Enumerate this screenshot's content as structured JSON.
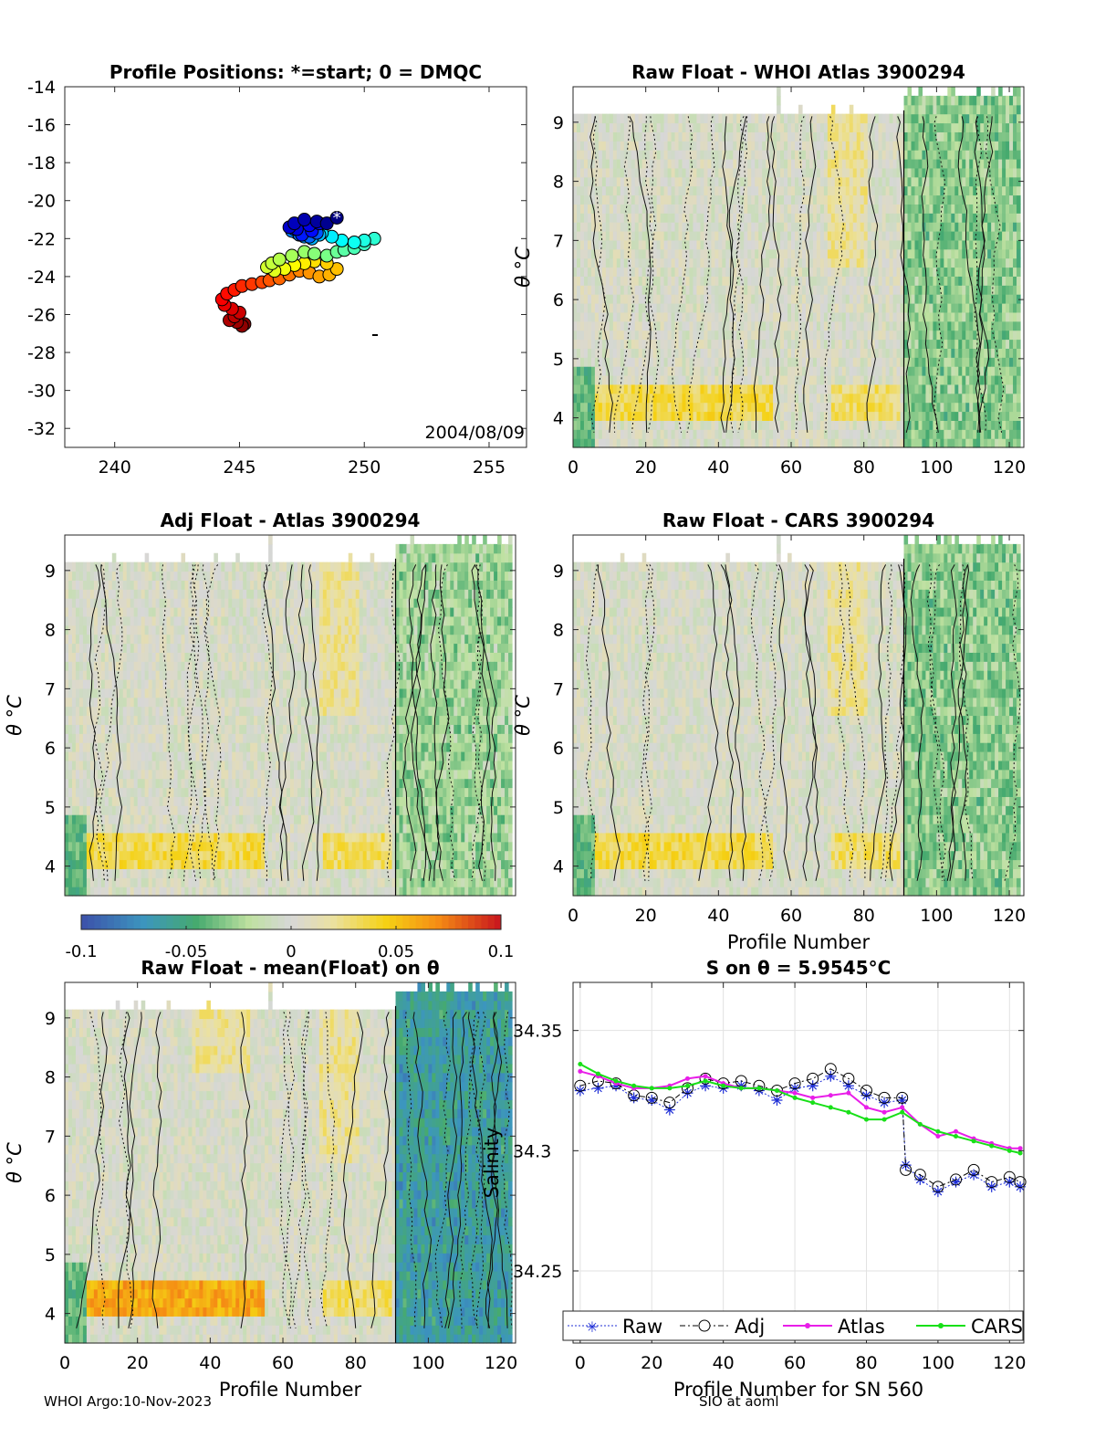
{
  "figure": {
    "footer_left": "WHOI Argo:10-Nov-2023",
    "footer_right": "SIO at aoml"
  },
  "chart_data": [
    {
      "id": "positions",
      "type": "scatter",
      "title": "Profile Positions: *=start; 0 = DMQC",
      "xlim": [
        238,
        256.5
      ],
      "ylim": [
        -33,
        -14
      ],
      "xticks": [
        240,
        245,
        250,
        255
      ],
      "yticks": [
        -14,
        -16,
        -18,
        -20,
        -22,
        -24,
        -26,
        -28,
        -30,
        -32
      ],
      "annotation": "2004/08/09",
      "points": {
        "lon": [
          248.9,
          248.5,
          248.1,
          247.6,
          247.2,
          247.0,
          247.3,
          247.8,
          248.2,
          247.9,
          247.5,
          247.2,
          247.4,
          247.7,
          248.1,
          247.8,
          247.4,
          247.1,
          247.3,
          247.6,
          247.9,
          248.2,
          247.8,
          248.3,
          248.7,
          249.1,
          249.6,
          250.0,
          250.4,
          250.0,
          249.6,
          249.2,
          248.9,
          248.5,
          248.0,
          247.6,
          247.1,
          246.6,
          246.3,
          246.1,
          246.4,
          246.8,
          247.2,
          247.6,
          248.0,
          248.5,
          248.9,
          248.6,
          248.2,
          247.8,
          247.4,
          247.0,
          246.6,
          246.2,
          245.9,
          245.5,
          245.1,
          244.8,
          244.5,
          244.3,
          244.4,
          244.7,
          245.0,
          244.8,
          244.6,
          244.9,
          245.1,
          245.2
        ],
        "lat": [
          -20.9,
          -21.2,
          -21.1,
          -21.0,
          -21.2,
          -21.4,
          -21.5,
          -21.3,
          -21.2,
          -21.6,
          -21.8,
          -21.5,
          -21.3,
          -21.5,
          -21.7,
          -21.9,
          -21.8,
          -21.6,
          -21.7,
          -21.9,
          -22.0,
          -21.8,
          -21.6,
          -21.7,
          -21.9,
          -22.1,
          -22.2,
          -22.1,
          -22.0,
          -22.3,
          -22.5,
          -22.6,
          -22.7,
          -22.9,
          -22.8,
          -22.7,
          -22.9,
          -23.1,
          -23.3,
          -23.5,
          -23.7,
          -23.6,
          -23.4,
          -23.3,
          -23.2,
          -23.3,
          -23.6,
          -23.9,
          -24.0,
          -23.8,
          -23.7,
          -23.9,
          -24.1,
          -24.2,
          -24.3,
          -24.4,
          -24.5,
          -24.7,
          -24.9,
          -25.2,
          -25.5,
          -25.7,
          -25.9,
          -26.1,
          -26.3,
          -26.4,
          -26.6,
          -26.5
        ]
      },
      "colorscale": "jet (blue=start, red=end)"
    },
    {
      "id": "raw_whoi",
      "type": "heatmap",
      "title": "Raw Float - WHOI Atlas  3900294",
      "ylabel": "θ °C",
      "xlim": [
        0,
        124
      ],
      "ylim": [
        3.5,
        9.6
      ],
      "xticks": [
        0,
        20,
        40,
        60,
        80,
        100,
        120
      ],
      "yticks": [
        4,
        5,
        6,
        7,
        8,
        9
      ],
      "shift_after_profile_91": -0.03
    },
    {
      "id": "adj_atlas",
      "type": "heatmap",
      "title": "Adj Float - Atlas  3900294",
      "ylabel": "θ °C",
      "xlim": [
        0,
        124
      ],
      "ylim": [
        3.5,
        9.6
      ],
      "xticks": [],
      "yticks": [
        4,
        5,
        6,
        7,
        8,
        9
      ],
      "shift_after_profile_91": -0.025
    },
    {
      "id": "raw_cars",
      "type": "heatmap",
      "title": "Raw Float - CARS  3900294",
      "ylabel": "θ °C",
      "xlabel": "Profile Number",
      "xlim": [
        0,
        124
      ],
      "ylim": [
        3.5,
        9.6
      ],
      "xticks": [
        0,
        20,
        40,
        60,
        80,
        100,
        120
      ],
      "yticks": [
        4,
        5,
        6,
        7,
        8,
        9
      ],
      "shift_after_profile_91": -0.03
    },
    {
      "id": "colorbar",
      "type": "colorbar",
      "range": [
        -0.1,
        0.1
      ],
      "ticks": [
        "-0.1",
        "-0.05",
        "0",
        "0.05",
        "0.1"
      ]
    },
    {
      "id": "raw_mean",
      "type": "heatmap",
      "title": "Raw Float - mean(Float) on θ",
      "ylabel": "θ °C",
      "xlabel": "Profile Number",
      "xlim": [
        0,
        124
      ],
      "ylim": [
        3.5,
        9.6
      ],
      "xticks": [
        0,
        20,
        40,
        60,
        80,
        100,
        120
      ],
      "yticks": [
        4,
        5,
        6,
        7,
        8,
        9
      ],
      "shift_after_profile_91": -0.06
    },
    {
      "id": "salinity",
      "type": "line",
      "title": "S on θ = 5.9545°C",
      "ylabel": "Salinity",
      "xlabel": "Profile Number for SN 560",
      "xlim": [
        -2,
        124
      ],
      "ylim": [
        34.22,
        34.37
      ],
      "xticks": [
        0,
        20,
        40,
        60,
        80,
        100,
        120
      ],
      "yticks": [
        34.25,
        34.3,
        34.35
      ],
      "ytick_labels": [
        "34.25",
        "34.3",
        "34.35"
      ],
      "legend": [
        "Raw",
        "Adj",
        "Atlas",
        "CARS"
      ],
      "series": [
        {
          "name": "Raw",
          "color": "#1f2fd6",
          "x": [
            0,
            5,
            10,
            15,
            20,
            25,
            30,
            35,
            40,
            45,
            50,
            55,
            60,
            65,
            70,
            75,
            80,
            85,
            90,
            91,
            95,
            100,
            105,
            110,
            115,
            120,
            123
          ],
          "values": [
            34.325,
            34.326,
            34.327,
            34.322,
            34.321,
            34.317,
            34.324,
            34.327,
            34.326,
            34.327,
            34.325,
            34.321,
            34.326,
            34.327,
            34.331,
            34.327,
            34.323,
            34.32,
            34.321,
            34.294,
            34.288,
            34.283,
            34.287,
            34.29,
            34.285,
            34.287,
            34.285
          ]
        },
        {
          "name": "Adj",
          "color": "#000000",
          "x": [
            0,
            5,
            10,
            15,
            20,
            25,
            30,
            35,
            40,
            45,
            50,
            55,
            60,
            65,
            70,
            75,
            80,
            85,
            90,
            91,
            95,
            100,
            105,
            110,
            115,
            120,
            123
          ],
          "values": [
            34.327,
            34.329,
            34.328,
            34.323,
            34.322,
            34.32,
            34.326,
            34.33,
            34.328,
            34.329,
            34.327,
            34.325,
            34.328,
            34.33,
            34.334,
            34.33,
            34.325,
            34.322,
            34.322,
            34.292,
            34.29,
            34.285,
            34.288,
            34.292,
            34.287,
            34.289,
            34.287
          ]
        },
        {
          "name": "Atlas",
          "color": "#e81ee8",
          "x": [
            0,
            5,
            10,
            15,
            20,
            25,
            30,
            35,
            40,
            45,
            50,
            55,
            60,
            65,
            70,
            75,
            80,
            85,
            90,
            95,
            100,
            105,
            110,
            115,
            120,
            123
          ],
          "values": [
            34.333,
            34.331,
            34.328,
            34.326,
            34.326,
            34.327,
            34.33,
            34.331,
            34.328,
            34.326,
            34.326,
            34.325,
            34.324,
            34.322,
            34.323,
            34.324,
            34.318,
            34.316,
            34.318,
            34.311,
            34.306,
            34.308,
            34.305,
            34.303,
            34.301,
            34.301
          ]
        },
        {
          "name": "CARS",
          "color": "#18e018",
          "x": [
            0,
            5,
            10,
            15,
            20,
            25,
            30,
            35,
            40,
            45,
            50,
            55,
            60,
            65,
            70,
            75,
            80,
            85,
            90,
            95,
            100,
            105,
            110,
            115,
            120,
            123
          ],
          "values": [
            34.336,
            34.332,
            34.329,
            34.327,
            34.326,
            34.326,
            34.327,
            34.329,
            34.327,
            34.326,
            34.326,
            34.325,
            34.322,
            34.32,
            34.318,
            34.316,
            34.313,
            34.313,
            34.316,
            34.311,
            34.308,
            34.306,
            34.304,
            34.302,
            34.3,
            34.299
          ]
        }
      ]
    }
  ]
}
